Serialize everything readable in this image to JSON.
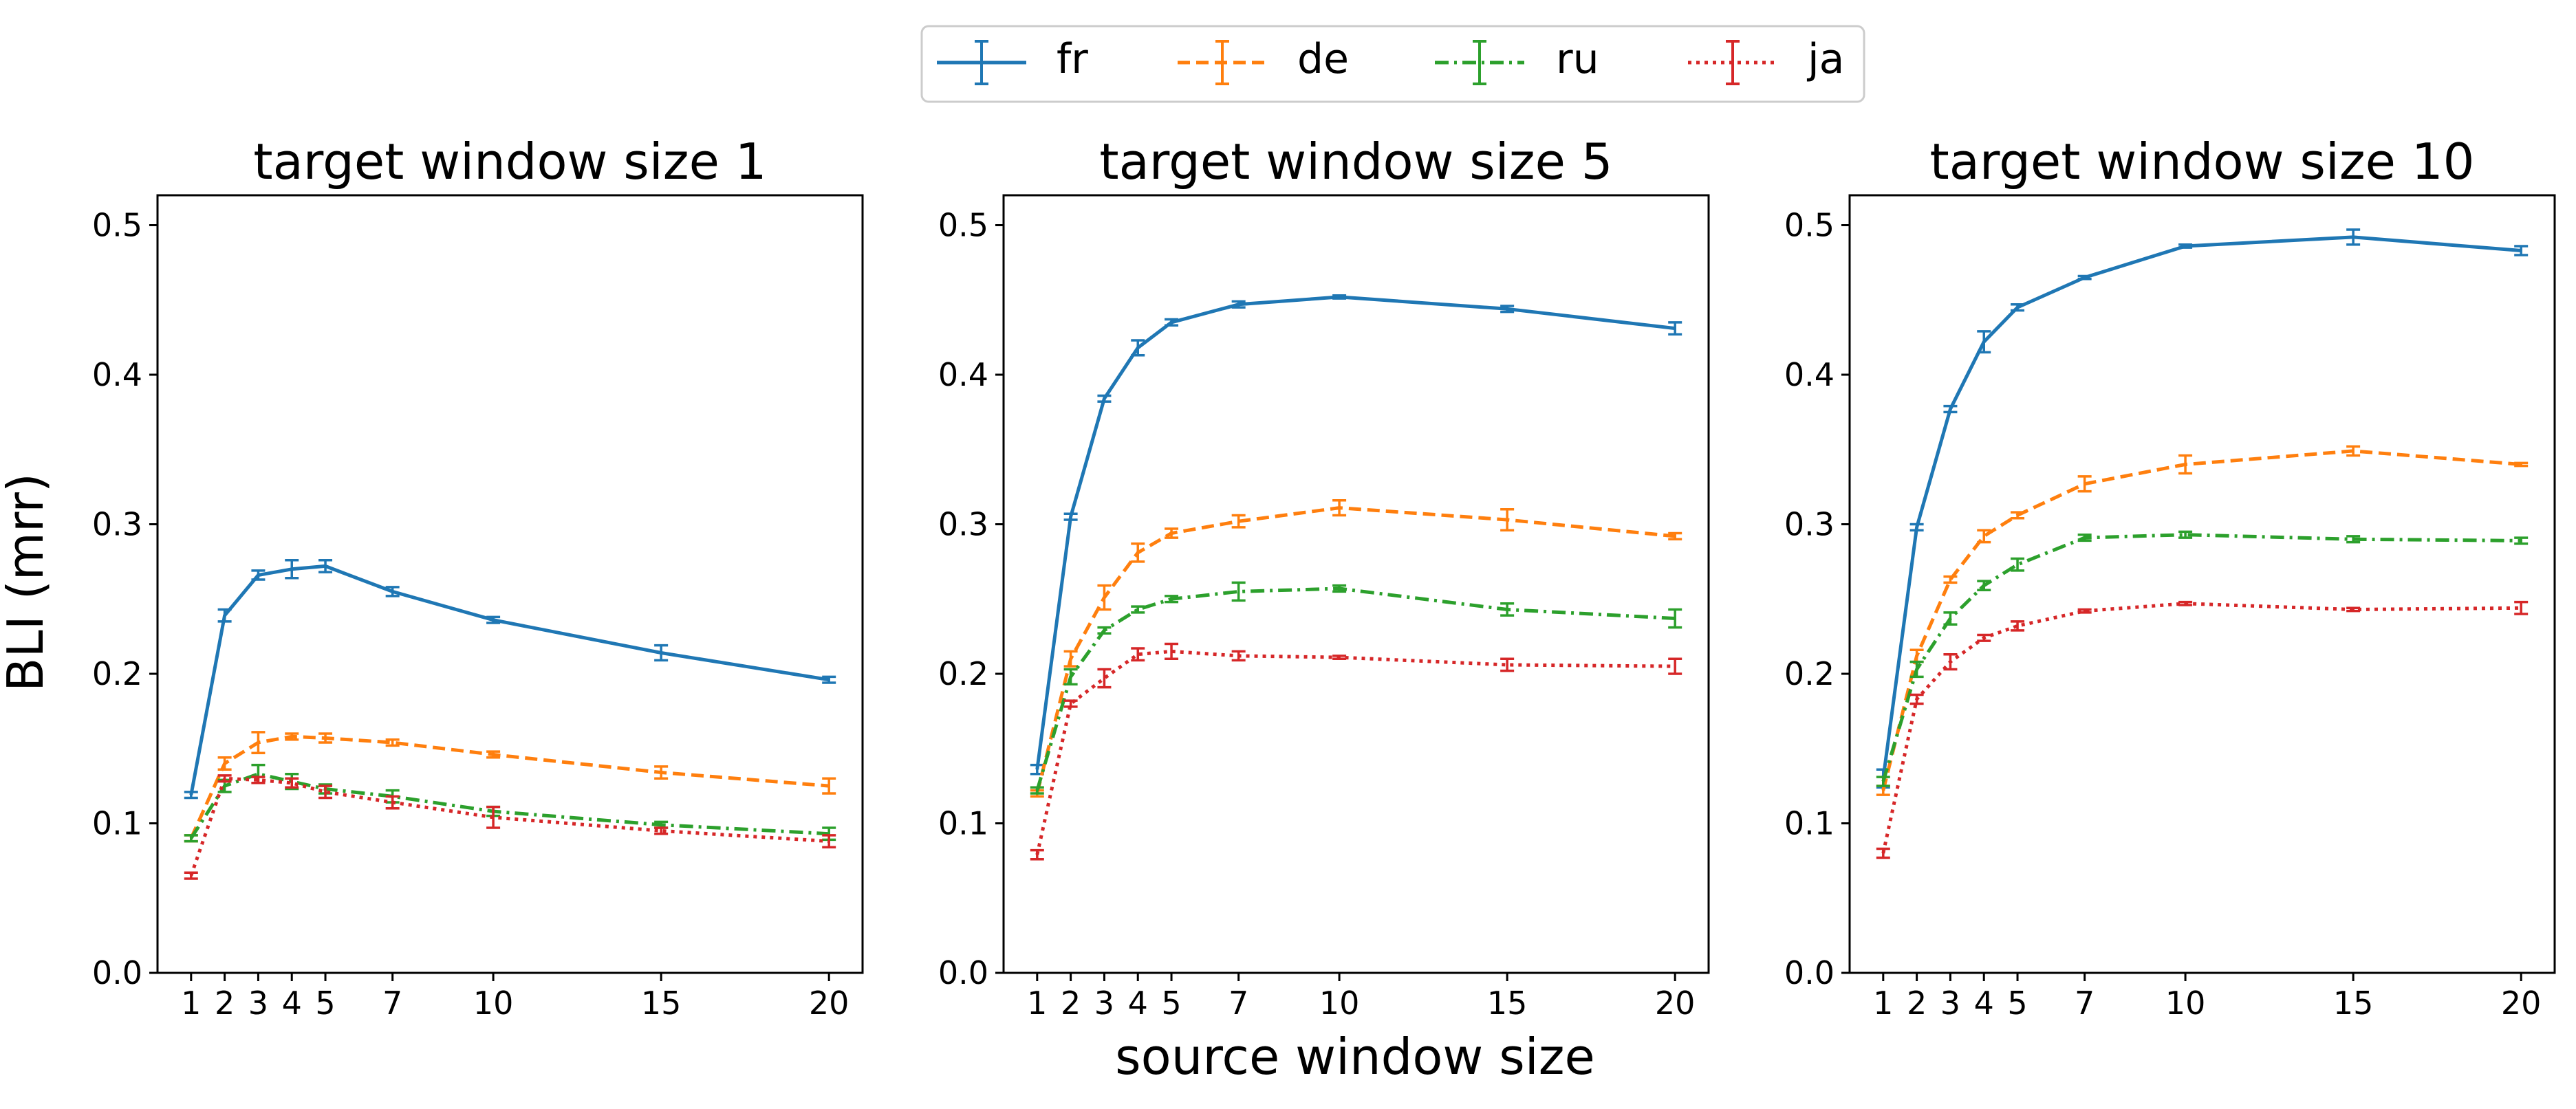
{
  "figure": {
    "ylabel": "BLI (mrr)",
    "xlabel": "source window size"
  },
  "legend": {
    "placement": "top-center",
    "entries": [
      {
        "label": "fr",
        "color": "#1f77b4",
        "dash": "solid"
      },
      {
        "label": "de",
        "color": "#ff7f0e",
        "dash": "dashed"
      },
      {
        "label": "ru",
        "color": "#2ca02c",
        "dash": "dashdot"
      },
      {
        "label": "ja",
        "color": "#d62728",
        "dash": "dotted"
      }
    ]
  },
  "chart_data": [
    {
      "type": "line",
      "title": "target window size 1",
      "x": [
        1,
        2,
        3,
        4,
        5,
        7,
        10,
        15,
        20
      ],
      "xticks": [
        "1",
        "2",
        "3",
        "4",
        "5",
        "7",
        "10",
        "15",
        "20"
      ],
      "xlim": [
        0.0,
        21.0
      ],
      "ylim": [
        0.0,
        0.52
      ],
      "yticks": [
        "0.0",
        "0.1",
        "0.2",
        "0.3",
        "0.4",
        "0.5"
      ],
      "series": [
        {
          "name": "fr",
          "values": [
            0.119,
            0.239,
            0.266,
            0.27,
            0.272,
            0.255,
            0.236,
            0.214,
            0.196
          ],
          "errors": [
            0.002,
            0.004,
            0.003,
            0.006,
            0.004,
            0.003,
            0.002,
            0.005,
            0.002
          ]
        },
        {
          "name": "de",
          "values": [
            0.09,
            0.14,
            0.154,
            0.158,
            0.157,
            0.154,
            0.146,
            0.134,
            0.125
          ],
          "errors": [
            0.002,
            0.004,
            0.007,
            0.002,
            0.003,
            0.002,
            0.002,
            0.004,
            0.005
          ]
        },
        {
          "name": "ru",
          "values": [
            0.09,
            0.125,
            0.133,
            0.128,
            0.123,
            0.118,
            0.108,
            0.099,
            0.093
          ],
          "errors": [
            0.002,
            0.004,
            0.006,
            0.005,
            0.003,
            0.004,
            0.003,
            0.002,
            0.004
          ]
        },
        {
          "name": "ja",
          "values": [
            0.065,
            0.13,
            0.129,
            0.127,
            0.121,
            0.114,
            0.104,
            0.095,
            0.088
          ],
          "errors": [
            0.002,
            0.002,
            0.002,
            0.003,
            0.004,
            0.004,
            0.007,
            0.002,
            0.004
          ]
        }
      ]
    },
    {
      "type": "line",
      "title": "target window size 5",
      "x": [
        1,
        2,
        3,
        4,
        5,
        7,
        10,
        15,
        20
      ],
      "xticks": [
        "1",
        "2",
        "3",
        "4",
        "5",
        "7",
        "10",
        "15",
        "20"
      ],
      "xlim": [
        0.0,
        21.0
      ],
      "ylim": [
        0.0,
        0.52
      ],
      "yticks": [
        "0.0",
        "0.1",
        "0.2",
        "0.3",
        "0.4",
        "0.5"
      ],
      "series": [
        {
          "name": "fr",
          "values": [
            0.136,
            0.305,
            0.384,
            0.418,
            0.435,
            0.447,
            0.452,
            0.444,
            0.431
          ],
          "errors": [
            0.003,
            0.002,
            0.002,
            0.005,
            0.002,
            0.002,
            0.001,
            0.002,
            0.004
          ]
        },
        {
          "name": "de",
          "values": [
            0.12,
            0.21,
            0.251,
            0.281,
            0.294,
            0.302,
            0.311,
            0.303,
            0.292
          ],
          "errors": [
            0.002,
            0.005,
            0.008,
            0.006,
            0.003,
            0.004,
            0.005,
            0.007,
            0.002
          ]
        },
        {
          "name": "ru",
          "values": [
            0.122,
            0.198,
            0.229,
            0.243,
            0.25,
            0.255,
            0.257,
            0.243,
            0.237
          ],
          "errors": [
            0.002,
            0.005,
            0.002,
            0.002,
            0.002,
            0.006,
            0.002,
            0.004,
            0.006
          ]
        },
        {
          "name": "ja",
          "values": [
            0.079,
            0.18,
            0.197,
            0.213,
            0.215,
            0.212,
            0.211,
            0.206,
            0.205
          ],
          "errors": [
            0.003,
            0.002,
            0.006,
            0.004,
            0.005,
            0.003,
            0.001,
            0.004,
            0.005
          ]
        }
      ]
    },
    {
      "type": "line",
      "title": "target window size 10",
      "x": [
        1,
        2,
        3,
        4,
        5,
        7,
        10,
        15,
        20
      ],
      "xticks": [
        "1",
        "2",
        "3",
        "4",
        "5",
        "7",
        "10",
        "15",
        "20"
      ],
      "xlim": [
        0.0,
        21.0
      ],
      "ylim": [
        0.0,
        0.52
      ],
      "yticks": [
        "0.0",
        "0.1",
        "0.2",
        "0.3",
        "0.4",
        "0.5"
      ],
      "series": [
        {
          "name": "fr",
          "values": [
            0.13,
            0.298,
            0.377,
            0.422,
            0.445,
            0.465,
            0.486,
            0.492,
            0.483
          ],
          "errors": [
            0.006,
            0.002,
            0.002,
            0.007,
            0.002,
            0.001,
            0.001,
            0.005,
            0.003
          ]
        },
        {
          "name": "de",
          "values": [
            0.122,
            0.212,
            0.263,
            0.292,
            0.306,
            0.327,
            0.34,
            0.349,
            0.34
          ],
          "errors": [
            0.003,
            0.004,
            0.002,
            0.004,
            0.002,
            0.005,
            0.006,
            0.003,
            0.001
          ]
        },
        {
          "name": "ru",
          "values": [
            0.128,
            0.203,
            0.237,
            0.259,
            0.273,
            0.291,
            0.293,
            0.29,
            0.289
          ],
          "errors": [
            0.003,
            0.005,
            0.004,
            0.003,
            0.004,
            0.002,
            0.002,
            0.002,
            0.002
          ]
        },
        {
          "name": "ja",
          "values": [
            0.08,
            0.183,
            0.208,
            0.224,
            0.232,
            0.242,
            0.247,
            0.243,
            0.244
          ],
          "errors": [
            0.003,
            0.003,
            0.005,
            0.002,
            0.003,
            0.001,
            0.001,
            0.001,
            0.004
          ]
        }
      ]
    }
  ]
}
